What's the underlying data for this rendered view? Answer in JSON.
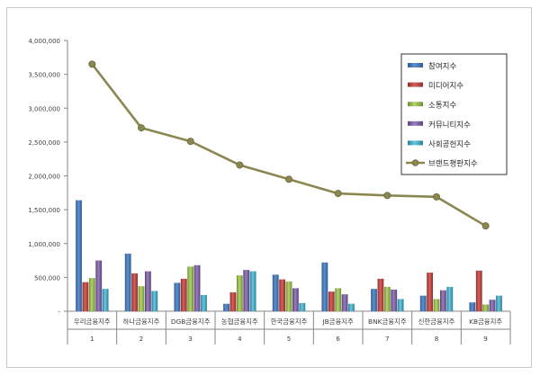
{
  "chart_data": {
    "type": "bar",
    "title": "",
    "xlabel": "",
    "ylabel": "",
    "ylim": [
      0,
      4000000
    ],
    "ytick_step": 500000,
    "ytick_labels": [
      "-",
      "500,000",
      "1,000,000",
      "1,500,000",
      "2,000,000",
      "2,500,000",
      "3,000,000",
      "3,500,000",
      "4,000,000"
    ],
    "grid": false,
    "legend_position": "top-right",
    "categories": [
      "우리금융지주",
      "하나금융지주",
      "DGB금융지주",
      "농협금융지주",
      "한국금융지주",
      "JB금융지주",
      "BNK금융지주",
      "신한금융지주",
      "KB금융지주"
    ],
    "ranks": [
      "1",
      "2",
      "3",
      "4",
      "5",
      "6",
      "7",
      "8",
      "9"
    ],
    "series": [
      {
        "name": "참여지수",
        "kind": "bar",
        "color": "#4f81bd",
        "values": [
          1640000,
          850000,
          420000,
          110000,
          540000,
          720000,
          330000,
          230000,
          130000
        ]
      },
      {
        "name": "미디어지수",
        "kind": "bar",
        "color": "#c0504d",
        "values": [
          430000,
          560000,
          480000,
          280000,
          470000,
          290000,
          480000,
          570000,
          600000
        ]
      },
      {
        "name": "소통지수",
        "kind": "bar",
        "color": "#9bbb59",
        "values": [
          490000,
          370000,
          660000,
          530000,
          440000,
          340000,
          360000,
          180000,
          100000
        ]
      },
      {
        "name": "커뮤니티지수",
        "kind": "bar",
        "color": "#8064a2",
        "values": [
          750000,
          590000,
          680000,
          610000,
          340000,
          250000,
          320000,
          310000,
          170000
        ]
      },
      {
        "name": "사회공헌지수",
        "kind": "bar",
        "color": "#4bacc6",
        "values": [
          330000,
          300000,
          240000,
          590000,
          120000,
          110000,
          180000,
          360000,
          230000
        ]
      },
      {
        "name": "브랜드평판지수",
        "kind": "line",
        "color": "#8b8751",
        "values": [
          3650000,
          2710000,
          2510000,
          2160000,
          1950000,
          1740000,
          1710000,
          1690000,
          1260000
        ]
      }
    ]
  }
}
